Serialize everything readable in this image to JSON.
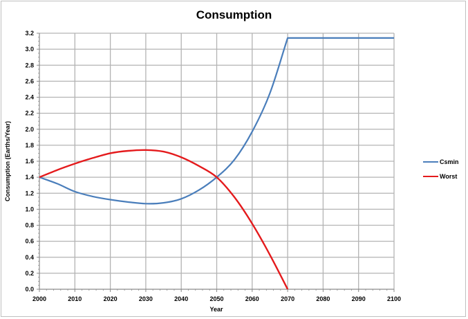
{
  "chart_data": {
    "type": "line",
    "title": "Consumption",
    "xlabel": "Year",
    "ylabel": "Consumption (Earths/Year)",
    "xlim": [
      2000,
      2100
    ],
    "ylim": [
      0,
      3.2
    ],
    "x_ticks": [
      "2000",
      "2010",
      "2020",
      "2030",
      "2040",
      "2050",
      "2060",
      "2070",
      "2080",
      "2090",
      "2100"
    ],
    "y_ticks": [
      "0.0",
      "0.2",
      "0.4",
      "0.6",
      "0.8",
      "1.0",
      "1.2",
      "1.4",
      "1.6",
      "1.8",
      "2.0",
      "2.2",
      "2.4",
      "2.6",
      "2.8",
      "3.0",
      "3.2"
    ],
    "grid": true,
    "legend_position": "right",
    "series": [
      {
        "name": "Csmin",
        "color": "#4a7ebb",
        "x": [
          2000,
          2005,
          2010,
          2015,
          2020,
          2025,
          2030,
          2035,
          2040,
          2045,
          2050,
          2055,
          2060,
          2065,
          2070,
          2080,
          2090,
          2100
        ],
        "values": [
          1.4,
          1.32,
          1.22,
          1.16,
          1.12,
          1.09,
          1.07,
          1.08,
          1.13,
          1.24,
          1.4,
          1.62,
          1.97,
          2.45,
          3.14,
          3.14,
          3.14,
          3.14
        ]
      },
      {
        "name": "Worst",
        "color": "#e41a1c",
        "x": [
          2000,
          2005,
          2010,
          2015,
          2020,
          2025,
          2030,
          2035,
          2040,
          2045,
          2050,
          2055,
          2060,
          2065,
          2070
        ],
        "values": [
          1.4,
          1.49,
          1.57,
          1.64,
          1.7,
          1.73,
          1.74,
          1.72,
          1.65,
          1.54,
          1.4,
          1.15,
          0.82,
          0.43,
          0.0
        ]
      }
    ]
  }
}
